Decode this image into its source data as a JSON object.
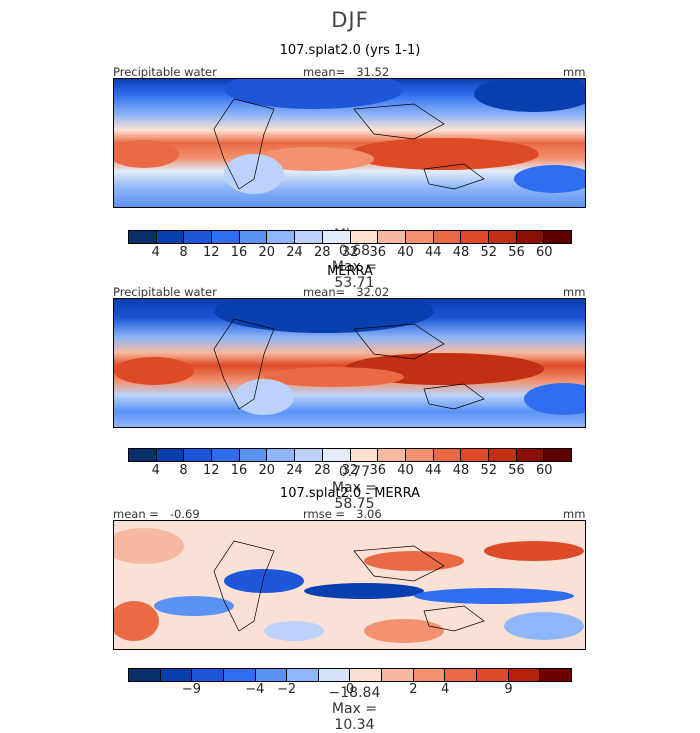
{
  "header": {
    "title": "DJF"
  },
  "panels": [
    {
      "title": "107.splat2.0 (yrs 1-1)",
      "variable": "Precipitable water",
      "stat_label": "mean=",
      "stat_value": "31.52",
      "units": "mm",
      "min_label": "Min =",
      "min_value": "0.68",
      "max_label": "Max =",
      "max_value": "53.71"
    },
    {
      "title": "MERRA",
      "variable": "Precipitable water",
      "stat_label": "mean=",
      "stat_value": "32.02",
      "units": "mm",
      "min_label": "Min =",
      "min_value": "0.77",
      "max_label": "Max =",
      "max_value": "58.75"
    },
    {
      "title": "107.splat2.0 - MERRA",
      "stat_label": "mean =",
      "stat_value": "-0.69",
      "rmse_label": "rmse =",
      "rmse_value": "3.06",
      "units": "mm",
      "min_label": "Min =",
      "min_value": "−18.84",
      "max_label": "Max =",
      "max_value": "10.34"
    }
  ],
  "chart_data": [
    {
      "type": "heatmap",
      "title": "107.splat2.0 (yrs 1-1)",
      "variable": "Precipitable water",
      "units": "mm",
      "mean": 31.52,
      "min": 0.68,
      "max": 53.71,
      "colorbar_levels": [
        4,
        8,
        12,
        16,
        20,
        24,
        28,
        32,
        36,
        40,
        44,
        48,
        52,
        56,
        60
      ],
      "colorbar_labels": [
        "4",
        "8",
        "12",
        "16",
        "20",
        "24",
        "28",
        "32",
        "36",
        "40",
        "44",
        "48",
        "52",
        "56",
        "60"
      ]
    },
    {
      "type": "heatmap",
      "title": "MERRA",
      "variable": "Precipitable water",
      "units": "mm",
      "mean": 32.02,
      "min": 0.77,
      "max": 58.75,
      "colorbar_levels": [
        4,
        8,
        12,
        16,
        20,
        24,
        28,
        32,
        36,
        40,
        44,
        48,
        52,
        56,
        60
      ],
      "colorbar_labels": [
        "4",
        "8",
        "12",
        "16",
        "20",
        "24",
        "28",
        "32",
        "36",
        "40",
        "44",
        "48",
        "52",
        "56",
        "60"
      ]
    },
    {
      "type": "heatmap",
      "title": "107.splat2.0 - MERRA",
      "units": "mm",
      "mean": -0.69,
      "rmse": 3.06,
      "min": -18.84,
      "max": 10.34,
      "colorbar_labels": [
        "−9",
        "−4",
        "−2",
        "0",
        "2",
        "4",
        "9"
      ],
      "colorbar_bins": 14
    }
  ],
  "colors": {
    "abs_scale": [
      "#08306b",
      "#0a3fb0",
      "#1d56d8",
      "#2f6ef0",
      "#5b93f5",
      "#8fb6f8",
      "#bcd2fa",
      "#e3ecfb",
      "#fde2d2",
      "#f7b9a0",
      "#f29270",
      "#ea6a45",
      "#dd4a25",
      "#c22f12",
      "#8c0f05",
      "#5e0000"
    ],
    "diff_scale": [
      "#08306b",
      "#0a3fb0",
      "#1d56d8",
      "#2f6ef0",
      "#5b93f5",
      "#8fb6f8",
      "#d6e4fa",
      "#fbe1d5",
      "#f7b9a0",
      "#f29270",
      "#ea6a45",
      "#dd4a25",
      "#b5200c",
      "#6e0000"
    ]
  }
}
